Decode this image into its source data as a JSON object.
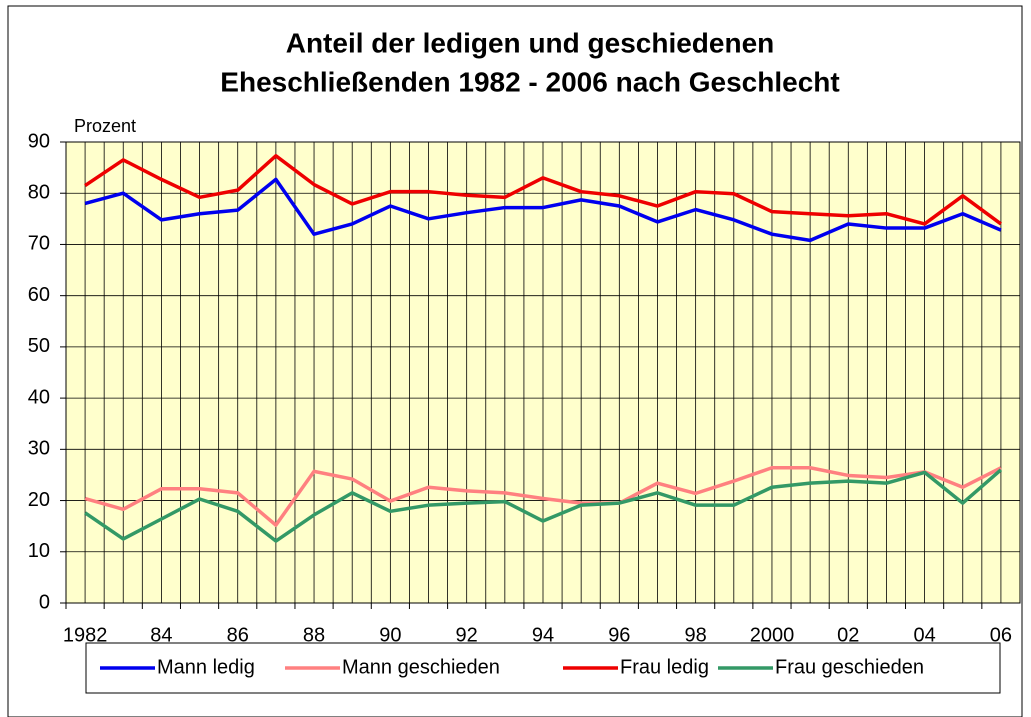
{
  "chart_data": {
    "type": "line",
    "title": "Anteil der ledigen und geschiedenen",
    "subtitle": "Eheschließenden 1982 - 2006 nach Geschlecht",
    "y_label": "Prozent",
    "categories": [
      "1982",
      null,
      "84",
      null,
      "86",
      null,
      "88",
      null,
      "90",
      null,
      "92",
      null,
      "94",
      null,
      "96",
      null,
      "98",
      null,
      "2000",
      null,
      "02",
      null,
      "04",
      null,
      "06"
    ],
    "series": [
      {
        "name": "Mann ledig",
        "color": "#0000ee",
        "values": [
          78,
          80,
          74.8,
          76,
          76.7,
          82.7,
          72,
          74,
          77.5,
          75,
          76.2,
          77.2,
          77.2,
          78.7,
          77.5,
          74.4,
          76.8,
          74.8,
          72,
          70.8,
          74,
          73.2,
          73.2,
          76,
          72.8
        ]
      },
      {
        "name": "Mann geschieden",
        "color": "#ff8080",
        "values": [
          20.4,
          18.3,
          22.3,
          22.3,
          21.5,
          15.2,
          25.7,
          24.2,
          19.9,
          22.6,
          21.9,
          21.5,
          20.4,
          19.5,
          19.5,
          23.4,
          21.4,
          23.8,
          26.4,
          26.4,
          24.9,
          24.5,
          25.6,
          22.6,
          26.4
        ]
      },
      {
        "name": "Frau ledig",
        "color": "#ee0000",
        "values": [
          81.5,
          86.5,
          82.7,
          79.2,
          80.6,
          87.3,
          81.7,
          77.9,
          80.3,
          80.3,
          79.6,
          79.2,
          83,
          80.3,
          79.5,
          77.5,
          80.3,
          79.9,
          76.4,
          76,
          75.6,
          76,
          74,
          79.5,
          74
        ]
      },
      {
        "name": "Frau geschieden",
        "color": "#339966",
        "values": [
          17.6,
          12.5,
          16.4,
          20.3,
          17.9,
          12.1,
          17.2,
          21.5,
          17.9,
          19.1,
          19.5,
          19.8,
          16,
          19.1,
          19.5,
          21.5,
          19.1,
          19.1,
          22.6,
          23.4,
          23.8,
          23.4,
          25.5,
          19.5,
          26
        ]
      }
    ],
    "ylim": [
      0,
      90
    ],
    "yticks": [
      0,
      10,
      20,
      30,
      40,
      50,
      60,
      70,
      80,
      90
    ],
    "grid": true,
    "plot_background": "#ffffcc",
    "legend": "bottom"
  }
}
